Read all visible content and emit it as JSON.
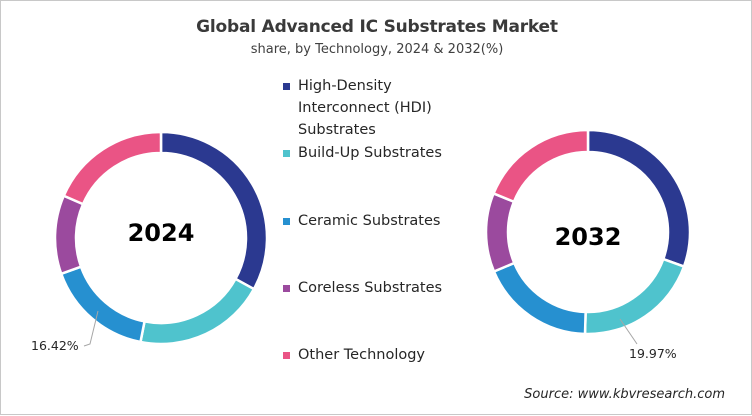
{
  "chart_data": {
    "type": "pie",
    "variant": "donut",
    "title": "Global Advanced IC Substrates Market",
    "subtitle": "share, by Technology, 2024 & 2032(%)",
    "legend_position": "center",
    "categories": [
      "High-Density Interconnect (HDI) Substrates",
      "Build-Up Substrates",
      "Ceramic Substrates",
      "Coreless Substrates",
      "Other Technology"
    ],
    "colors": [
      "#2b3990",
      "#4fc3cd",
      "#2690d0",
      "#9b4a9e",
      "#ea5485"
    ],
    "series": [
      {
        "name": "2024",
        "values": [
          33.0,
          20.1,
          16.42,
          12.0,
          18.48
        ]
      },
      {
        "name": "2032",
        "values": [
          30.5,
          19.97,
          18.2,
          12.5,
          18.83
        ]
      }
    ],
    "data_labels": [
      {
        "series": "2024",
        "category": "Ceramic Substrates",
        "text": "16.42%"
      },
      {
        "series": "2032",
        "category": "Build-Up Substrates",
        "text": "19.97%"
      }
    ],
    "source": "Source: www.kbvresearch.com"
  },
  "header": {
    "title": "Global Advanced IC Substrates Market",
    "subtitle": "share, by Technology, 2024 & 2032(%)"
  },
  "donuts": [
    {
      "year": "2024",
      "label": "16.42%"
    },
    {
      "year": "2032",
      "label": "19.97%"
    }
  ],
  "legend": {
    "items": [
      {
        "label": "High-Density Interconnect (HDI) Substrates",
        "color": "#2b3990"
      },
      {
        "label": "Build-Up Substrates",
        "color": "#4fc3cd"
      },
      {
        "label": "Ceramic Substrates",
        "color": "#2690d0"
      },
      {
        "label": "Coreless Substrates",
        "color": "#9b4a9e"
      },
      {
        "label": "Other Technology",
        "color": "#ea5485"
      }
    ]
  },
  "footer": {
    "source": "Source: www.kbvresearch.com"
  }
}
